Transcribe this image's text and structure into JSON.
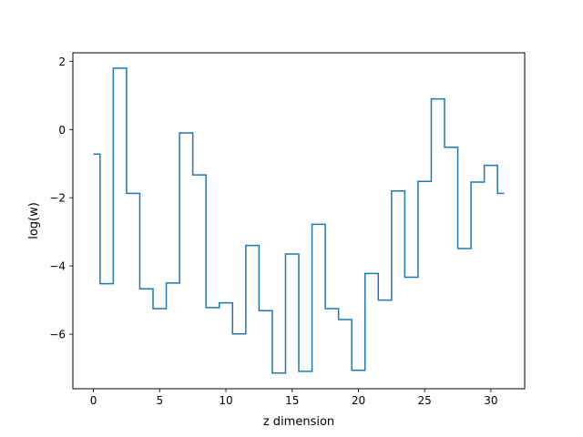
{
  "chart_data": {
    "type": "line",
    "drawstyle": "steps-mid",
    "xlabel": "z dimension",
    "ylabel": "log(w)",
    "xlim": [
      -1.55,
      32.55
    ],
    "ylim": [
      -7.6,
      2.25
    ],
    "xticks": [
      0,
      5,
      10,
      15,
      20,
      25,
      30
    ],
    "yticks": [
      -6,
      -4,
      -2,
      0,
      2
    ],
    "ytick_labels": [
      "−6",
      "−4",
      "−2",
      "0",
      "2"
    ],
    "grid": false,
    "series": [
      {
        "color": "#1f77b4",
        "x": [
          0,
          1,
          2,
          3,
          4,
          5,
          6,
          7,
          8,
          9,
          10,
          11,
          12,
          13,
          14,
          15,
          16,
          17,
          18,
          19,
          20,
          21,
          22,
          23,
          24,
          25,
          26,
          27,
          28,
          29,
          30,
          31
        ],
        "y": [
          -0.72,
          -4.52,
          1.8,
          -1.87,
          -4.67,
          -5.25,
          -4.5,
          -0.1,
          -1.33,
          -5.22,
          -5.08,
          -5.99,
          -3.4,
          -5.31,
          -7.14,
          -3.65,
          -7.09,
          -2.78,
          -5.25,
          -5.57,
          -7.06,
          -4.22,
          -5.0,
          -1.8,
          -4.33,
          -1.52,
          0.9,
          -0.52,
          -3.49,
          -1.54,
          -1.05,
          -1.87
        ]
      }
    ]
  }
}
